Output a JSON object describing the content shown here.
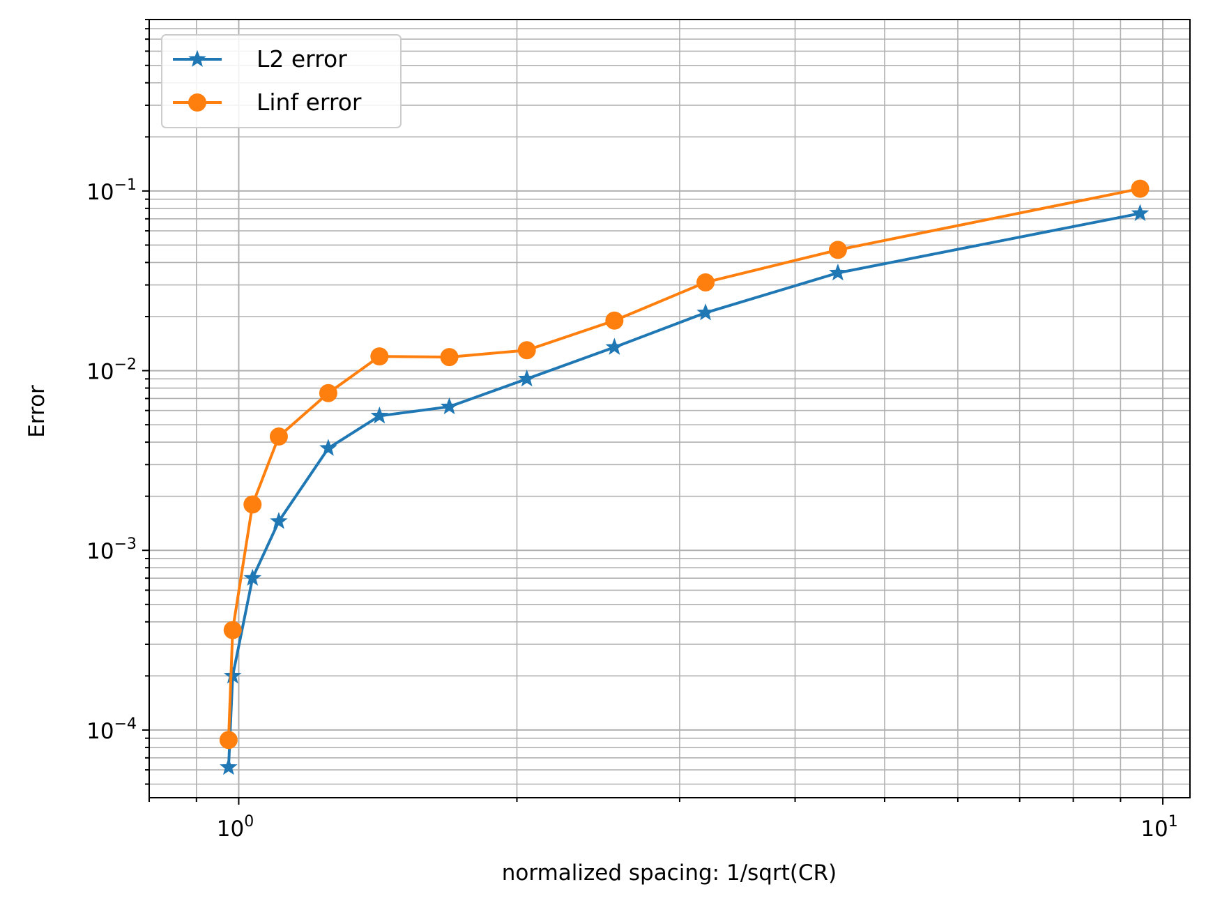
{
  "chart_data": {
    "type": "line",
    "title": "",
    "xlabel": "normalized spacing: 1/sqrt(CR)",
    "ylabel": "Error",
    "xscale": "log",
    "yscale": "log",
    "xlim": [
      0.8,
      10.7
    ],
    "ylim": [
      4.2e-05,
      0.9
    ],
    "grid": "major and minor",
    "legend_position": "top-left",
    "x_ticks": [
      {
        "value": 1,
        "base": "10",
        "exp": "0"
      },
      {
        "value": 10,
        "base": "10",
        "exp": "1"
      }
    ],
    "y_ticks": [
      {
        "value": 0.0001,
        "base": "10",
        "exp": "−4"
      },
      {
        "value": 0.001,
        "base": "10",
        "exp": "−3"
      },
      {
        "value": 0.01,
        "base": "10",
        "exp": "−2"
      },
      {
        "value": 0.1,
        "base": "10",
        "exp": "−1"
      }
    ],
    "series": [
      {
        "name": "L2 error",
        "color": "#1f77b4",
        "marker": "star",
        "x": [
          0.975,
          0.985,
          1.035,
          1.105,
          1.25,
          1.42,
          1.69,
          2.05,
          2.55,
          3.2,
          4.45,
          9.45
        ],
        "y": [
          6.2e-05,
          0.0002,
          0.0007,
          0.00145,
          0.0037,
          0.0056,
          0.0063,
          0.009,
          0.0135,
          0.021,
          0.035,
          0.075
        ]
      },
      {
        "name": "Linf error",
        "color": "#ff7f0e",
        "marker": "circle",
        "x": [
          0.975,
          0.985,
          1.035,
          1.105,
          1.25,
          1.42,
          1.69,
          2.05,
          2.55,
          3.2,
          4.45,
          9.45
        ],
        "y": [
          8.8e-05,
          0.00036,
          0.0018,
          0.0043,
          0.0075,
          0.012,
          0.0119,
          0.013,
          0.019,
          0.031,
          0.047,
          0.103
        ]
      }
    ]
  }
}
